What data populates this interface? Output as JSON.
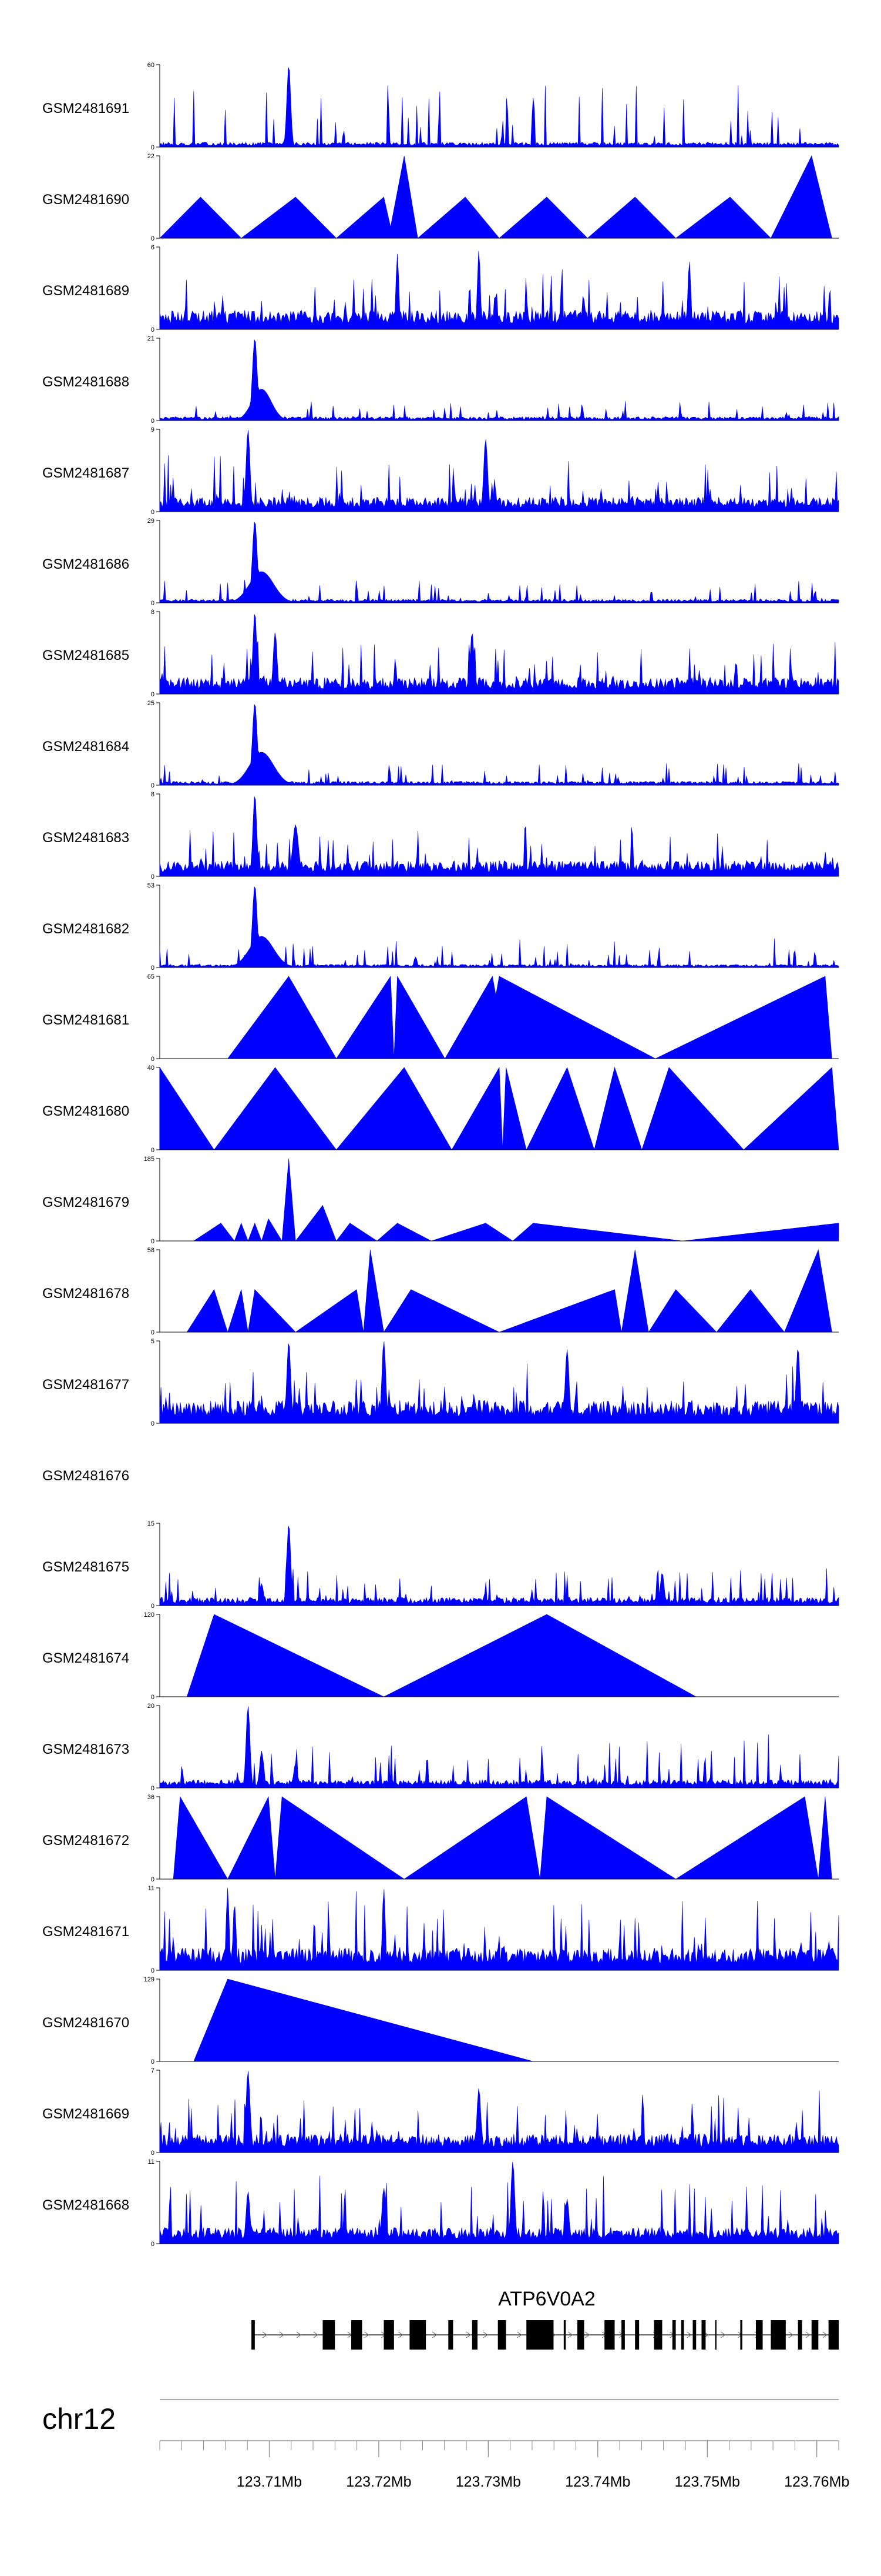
{
  "chart_data": {
    "type": "area",
    "chromosome": "chr12",
    "x_range_bp": [
      123700000,
      123762000
    ],
    "x_ticks": [
      {
        "pos": 123710000,
        "label": "123.71Mb"
      },
      {
        "pos": 123720000,
        "label": "123.72Mb"
      },
      {
        "pos": 123730000,
        "label": "123.73Mb"
      },
      {
        "pos": 123740000,
        "label": "123.74Mb"
      },
      {
        "pos": 123750000,
        "label": "123.75Mb"
      },
      {
        "pos": 123760000,
        "label": "123.76Mb"
      }
    ],
    "fill_color": "#0000ff",
    "tracks": [
      {
        "label": "GSM2481691",
        "ymax": 60,
        "style": "spiky",
        "base": 3.5,
        "spread": 1.8,
        "peaks": [
          [
            0.19,
            60,
            0.004
          ]
        ]
      },
      {
        "label": "GSM2481690",
        "ymax": 22,
        "style": "tri",
        "base": 0,
        "spread": 0,
        "peaks": [
          [
            0.0,
            0
          ],
          [
            0.06,
            11
          ],
          [
            0.12,
            0
          ],
          [
            0.2,
            11
          ],
          [
            0.26,
            0
          ],
          [
            0.33,
            11
          ],
          [
            0.34,
            3
          ],
          [
            0.36,
            22
          ],
          [
            0.38,
            0
          ],
          [
            0.45,
            11
          ],
          [
            0.5,
            0
          ],
          [
            0.57,
            11
          ],
          [
            0.63,
            0
          ],
          [
            0.7,
            11
          ],
          [
            0.76,
            0
          ],
          [
            0.84,
            11
          ],
          [
            0.9,
            0
          ],
          [
            0.96,
            22
          ],
          [
            0.99,
            0
          ],
          [
            1.0,
            0
          ]
        ]
      },
      {
        "label": "GSM2481689",
        "ymax": 6,
        "style": "spiky",
        "base": 1.4,
        "spread": 1.3,
        "peaks": [
          [
            0.35,
            5.5,
            0.003
          ],
          [
            0.47,
            5.8,
            0.003
          ],
          [
            0.78,
            5,
            0.003
          ]
        ]
      },
      {
        "label": "GSM2481688",
        "ymax": 21,
        "style": "spiky",
        "base": 1.0,
        "spread": 0.5,
        "peaks": [
          [
            0.14,
            21,
            0.005
          ],
          [
            0.15,
            8,
            0.02
          ]
        ]
      },
      {
        "label": "GSM2481687",
        "ymax": 9,
        "style": "spiky",
        "base": 1.6,
        "spread": 1.4,
        "peaks": [
          [
            0.13,
            9,
            0.004
          ],
          [
            0.48,
            8,
            0.004
          ]
        ]
      },
      {
        "label": "GSM2481686",
        "ymax": 29,
        "style": "spiky",
        "base": 1.3,
        "spread": 0.6,
        "peaks": [
          [
            0.14,
            29,
            0.005
          ],
          [
            0.15,
            11,
            0.025
          ]
        ]
      },
      {
        "label": "GSM2481685",
        "ymax": 8,
        "style": "spiky",
        "base": 1.6,
        "spread": 1.2,
        "peaks": [
          [
            0.14,
            8,
            0.004
          ],
          [
            0.17,
            6,
            0.004
          ],
          [
            0.46,
            6,
            0.004
          ]
        ]
      },
      {
        "label": "GSM2481684",
        "ymax": 25,
        "style": "spiky",
        "base": 1.2,
        "spread": 0.6,
        "peaks": [
          [
            0.14,
            25,
            0.005
          ],
          [
            0.15,
            10,
            0.025
          ]
        ]
      },
      {
        "label": "GSM2481683",
        "ymax": 8,
        "style": "spiky",
        "base": 1.5,
        "spread": 1.1,
        "peaks": [
          [
            0.14,
            8,
            0.004
          ],
          [
            0.2,
            5,
            0.006
          ]
        ]
      },
      {
        "label": "GSM2481682",
        "ymax": 53,
        "style": "spiky",
        "base": 2.0,
        "spread": 0.8,
        "peaks": [
          [
            0.14,
            53,
            0.005
          ],
          [
            0.15,
            20,
            0.025
          ]
        ]
      },
      {
        "label": "GSM2481681",
        "ymax": 65,
        "style": "tri",
        "base": 0,
        "spread": 0,
        "peaks": [
          [
            0.1,
            0
          ],
          [
            0.19,
            65
          ],
          [
            0.26,
            0
          ],
          [
            0.34,
            65
          ],
          [
            0.345,
            0
          ],
          [
            0.35,
            65
          ],
          [
            0.42,
            0
          ],
          [
            0.49,
            65
          ],
          [
            0.495,
            50
          ],
          [
            0.5,
            65
          ],
          [
            0.73,
            0
          ],
          [
            0.98,
            65
          ],
          [
            0.99,
            0
          ]
        ]
      },
      {
        "label": "GSM2481680",
        "ymax": 40,
        "style": "tri",
        "base": 0,
        "spread": 0,
        "peaks": [
          [
            0.0,
            40
          ],
          [
            0.08,
            0
          ],
          [
            0.17,
            40
          ],
          [
            0.26,
            0
          ],
          [
            0.36,
            40
          ],
          [
            0.43,
            0
          ],
          [
            0.5,
            40
          ],
          [
            0.505,
            0
          ],
          [
            0.51,
            40
          ],
          [
            0.54,
            0
          ],
          [
            0.6,
            40
          ],
          [
            0.64,
            0
          ],
          [
            0.67,
            40
          ],
          [
            0.71,
            0
          ],
          [
            0.75,
            40
          ],
          [
            0.86,
            0
          ],
          [
            0.99,
            40
          ],
          [
            1.0,
            0
          ]
        ]
      },
      {
        "label": "GSM2481679",
        "ymax": 185,
        "style": "tri",
        "base": 0,
        "spread": 0,
        "peaks": [
          [
            0.05,
            0
          ],
          [
            0.09,
            40
          ],
          [
            0.11,
            0
          ],
          [
            0.12,
            40
          ],
          [
            0.13,
            0
          ],
          [
            0.14,
            40
          ],
          [
            0.15,
            0
          ],
          [
            0.16,
            50
          ],
          [
            0.18,
            0
          ],
          [
            0.19,
            185
          ],
          [
            0.2,
            0
          ],
          [
            0.24,
            80
          ],
          [
            0.26,
            0
          ],
          [
            0.28,
            40
          ],
          [
            0.32,
            0
          ],
          [
            0.35,
            40
          ],
          [
            0.4,
            0
          ],
          [
            0.48,
            40
          ],
          [
            0.52,
            0
          ],
          [
            0.55,
            40
          ],
          [
            0.77,
            0
          ],
          [
            1.0,
            40
          ],
          [
            1.0,
            0
          ]
        ]
      },
      {
        "label": "GSM2481678",
        "ymax": 58,
        "style": "tri",
        "base": 0,
        "spread": 0,
        "peaks": [
          [
            0.04,
            0
          ],
          [
            0.08,
            30
          ],
          [
            0.1,
            0
          ],
          [
            0.12,
            30
          ],
          [
            0.13,
            0
          ],
          [
            0.14,
            30
          ],
          [
            0.2,
            0
          ],
          [
            0.29,
            30
          ],
          [
            0.3,
            0
          ],
          [
            0.31,
            58
          ],
          [
            0.33,
            0
          ],
          [
            0.37,
            30
          ],
          [
            0.5,
            0
          ],
          [
            0.67,
            30
          ],
          [
            0.68,
            0
          ],
          [
            0.7,
            58
          ],
          [
            0.72,
            0
          ],
          [
            0.76,
            30
          ],
          [
            0.82,
            0
          ],
          [
            0.87,
            30
          ],
          [
            0.92,
            0
          ],
          [
            0.97,
            58
          ],
          [
            0.99,
            0
          ]
        ]
      },
      {
        "label": "GSM2481677",
        "ymax": 5,
        "style": "spiky",
        "base": 1.4,
        "spread": 1.2,
        "peaks": [
          [
            0.19,
            5,
            0.004
          ],
          [
            0.33,
            5,
            0.004
          ],
          [
            0.6,
            4.5,
            0.004
          ],
          [
            0.94,
            4.6,
            0.004
          ]
        ]
      },
      {
        "label": "GSM2481676",
        "empty": true
      },
      {
        "label": "GSM2481675",
        "ymax": 15,
        "style": "spiky",
        "base": 1.5,
        "spread": 1.0,
        "peaks": [
          [
            0.19,
            15,
            0.004
          ],
          [
            0.15,
            4,
            0.004
          ],
          [
            0.74,
            6,
            0.004
          ]
        ]
      },
      {
        "label": "GSM2481674",
        "ymax": 120,
        "style": "tri",
        "base": 0,
        "spread": 0,
        "peaks": [
          [
            0.04,
            0
          ],
          [
            0.08,
            120
          ],
          [
            0.33,
            0
          ],
          [
            0.57,
            120
          ],
          [
            0.79,
            0
          ]
        ]
      },
      {
        "label": "GSM2481673",
        "ymax": 20,
        "style": "spiky",
        "base": 2.0,
        "spread": 1.4,
        "peaks": [
          [
            0.13,
            20,
            0.004
          ],
          [
            0.15,
            9,
            0.004
          ],
          [
            0.2,
            6,
            0.004
          ]
        ]
      },
      {
        "label": "GSM2481672",
        "ymax": 36,
        "style": "tri",
        "base": 0,
        "spread": 0,
        "peaks": [
          [
            0.02,
            0
          ],
          [
            0.03,
            36
          ],
          [
            0.1,
            0
          ],
          [
            0.16,
            36
          ],
          [
            0.17,
            0
          ],
          [
            0.18,
            36
          ],
          [
            0.36,
            0
          ],
          [
            0.54,
            36
          ],
          [
            0.56,
            0
          ],
          [
            0.57,
            36
          ],
          [
            0.76,
            0
          ],
          [
            0.95,
            36
          ],
          [
            0.97,
            0
          ],
          [
            0.98,
            36
          ],
          [
            0.99,
            0
          ]
        ]
      },
      {
        "label": "GSM2481671",
        "ymax": 11,
        "style": "spiky",
        "base": 3.0,
        "spread": 1.8,
        "peaks": [
          [
            0.1,
            11,
            0.003
          ],
          [
            0.11,
            9,
            0.003
          ],
          [
            0.33,
            11,
            0.003
          ]
        ]
      },
      {
        "label": "GSM2481670",
        "ymax": 129,
        "style": "tri",
        "base": 0,
        "spread": 0,
        "peaks": [
          [
            0.05,
            0
          ],
          [
            0.1,
            129
          ],
          [
            0.55,
            0
          ]
        ]
      },
      {
        "label": "GSM2481669",
        "ymax": 7,
        "style": "spiky",
        "base": 1.6,
        "spread": 1.4,
        "peaks": [
          [
            0.13,
            7,
            0.004
          ],
          [
            0.47,
            5.5,
            0.004
          ]
        ]
      },
      {
        "label": "GSM2481668",
        "ymax": 11,
        "style": "spiky",
        "base": 2.2,
        "spread": 1.6,
        "peaks": [
          [
            0.13,
            7,
            0.004
          ],
          [
            0.33,
            7.5,
            0.004
          ],
          [
            0.52,
            11,
            0.004
          ],
          [
            0.6,
            6,
            0.004
          ]
        ]
      }
    ],
    "gene": {
      "name": "ATP6V0A2",
      "strand": "+",
      "span": [
        0.135,
        1.0
      ],
      "exons": [
        [
          0.135,
          0.14
        ],
        [
          0.24,
          0.258
        ],
        [
          0.282,
          0.298
        ],
        [
          0.33,
          0.345
        ],
        [
          0.368,
          0.392
        ],
        [
          0.425,
          0.432
        ],
        [
          0.46,
          0.468
        ],
        [
          0.498,
          0.51
        ],
        [
          0.54,
          0.58
        ],
        [
          0.595,
          0.598
        ],
        [
          0.615,
          0.625
        ],
        [
          0.655,
          0.67
        ],
        [
          0.68,
          0.685
        ],
        [
          0.7,
          0.706
        ],
        [
          0.728,
          0.74
        ],
        [
          0.755,
          0.76
        ],
        [
          0.768,
          0.772
        ],
        [
          0.785,
          0.79
        ],
        [
          0.798,
          0.804
        ],
        [
          0.818,
          0.82
        ],
        [
          0.855,
          0.858
        ],
        [
          0.878,
          0.888
        ],
        [
          0.9,
          0.922
        ],
        [
          0.94,
          0.946
        ],
        [
          0.96,
          0.97
        ],
        [
          0.985,
          1.0
        ]
      ]
    }
  }
}
